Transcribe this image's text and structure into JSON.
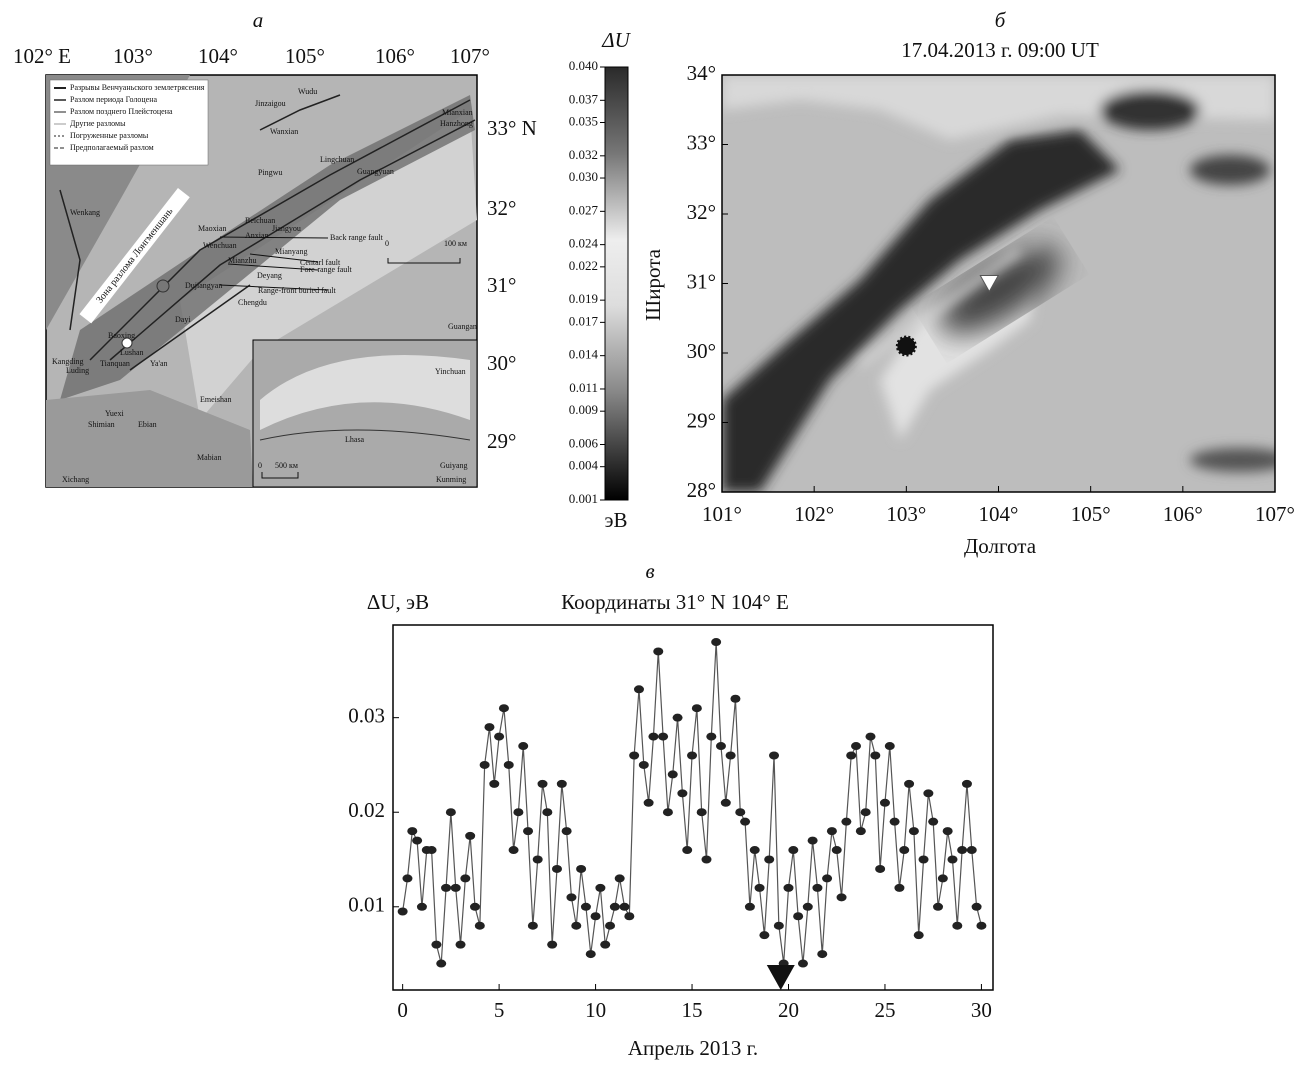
{
  "panel_a": {
    "label": "а",
    "lon_labels": [
      "102° E",
      "103°",
      "104°",
      "105°",
      "106°",
      "107°"
    ],
    "lat_labels": [
      "33° N",
      "32°",
      "31°",
      "30°",
      "29°"
    ],
    "legend": [
      "Разрывы Венчуаньского землетрясения",
      "Разлом периода Голоцена",
      "Разлом позднего Плейстоцена",
      "Другие разломы",
      "Погруженные разломы",
      "Предполагаемый разлом"
    ],
    "zone": "Зона разлома Лонгменшань",
    "places": [
      "Wudu",
      "Jinzaigou",
      "Wanxian",
      "Mianxian",
      "Hanzhong",
      "Lingchuan",
      "Pingwu",
      "Guangyuan",
      "Wenkang",
      "Beichuan",
      "Jiangyou",
      "Maoxian",
      "Anxian",
      "Mianyang",
      "Wenchuan",
      "Mianzhu",
      "Deyang",
      "Dujiangyan",
      "Chengdu",
      "Dayi",
      "Baoxing",
      "Lushan",
      "Kangding",
      "Luding",
      "Tianquan",
      "Ya'an",
      "Emeishan",
      "Yuexi",
      "Shimian",
      "Ebian",
      "Mabian",
      "Xichang",
      "Guangan",
      "Yinchuan",
      "Lhasa",
      "Guiyang",
      "Kunming"
    ],
    "faults": [
      "Back range fault",
      "Centarl fault",
      "Fore-range fault",
      "Range-front buried fault"
    ],
    "scale": [
      "0",
      "100 км",
      "0",
      "500 км"
    ]
  },
  "colorbar": {
    "title": "ΔU",
    "unit": "эВ",
    "lim": [
      0.001,
      0.04
    ],
    "ticks": [
      {
        "value": 0.04,
        "label": "0.040"
      },
      {
        "value": 0.037,
        "label": "0.037"
      },
      {
        "value": 0.035,
        "label": "0.035"
      },
      {
        "value": 0.032,
        "label": "0.032"
      },
      {
        "value": 0.03,
        "label": "0.030"
      },
      {
        "value": 0.027,
        "label": "0.027"
      },
      {
        "value": 0.024,
        "label": "0.024"
      },
      {
        "value": 0.022,
        "label": "0.022"
      },
      {
        "value": 0.019,
        "label": "0.019"
      },
      {
        "value": 0.017,
        "label": "0.017"
      },
      {
        "value": 0.014,
        "label": "0.014"
      },
      {
        "value": 0.011,
        "label": "0.011"
      },
      {
        "value": 0.009,
        "label": "0.009"
      },
      {
        "value": 0.006,
        "label": "0.006"
      },
      {
        "value": 0.004,
        "label": "0.004"
      },
      {
        "value": 0.001,
        "label": "0.001"
      }
    ]
  },
  "panel_b": {
    "label": "б",
    "subtitle": "17.04.2013 г. 09:00 UT",
    "xlabel": "Долгота",
    "ylabel": "Широта",
    "xlim": [
      101,
      107
    ],
    "ylim": [
      28,
      34
    ],
    "xticks": [
      {
        "value": 101,
        "label": "101°"
      },
      {
        "value": 102,
        "label": "102°"
      },
      {
        "value": 103,
        "label": "103°"
      },
      {
        "value": 104,
        "label": "104°"
      },
      {
        "value": 105,
        "label": "105°"
      },
      {
        "value": 106,
        "label": "106°"
      },
      {
        "value": 107,
        "label": "107°"
      }
    ],
    "yticks": [
      {
        "value": 28,
        "label": "28°"
      },
      {
        "value": 29,
        "label": "29°"
      },
      {
        "value": 30,
        "label": "30°"
      },
      {
        "value": 31,
        "label": "31°"
      },
      {
        "value": 32,
        "label": "32°"
      },
      {
        "value": 33,
        "label": "33°"
      },
      {
        "value": 34,
        "label": "34°"
      }
    ],
    "epicenter": {
      "x": 103.0,
      "y": 30.1
    },
    "station": {
      "x": 103.9,
      "y": 31.0
    }
  },
  "chart_data": {
    "type": "line",
    "label": "в",
    "title": "Координаты 31° N 104° E",
    "ylabel": "ΔU, эВ",
    "xlabel": "Апрель 2013 г.",
    "color": "#555",
    "marker_color": "#222",
    "xlim": [
      -0.5,
      30.6
    ],
    "ylim": [
      0.0012,
      0.0398
    ],
    "xticks": [
      0,
      5,
      10,
      15,
      20,
      25,
      30
    ],
    "yticks": [
      0.01,
      0.02,
      0.03
    ],
    "event_x": 19.6,
    "x": [
      0,
      0.25,
      0.5,
      0.75,
      1,
      1.25,
      1.5,
      1.75,
      2,
      2.25,
      2.5,
      2.75,
      3,
      3.25,
      3.5,
      3.75,
      4,
      4.25,
      4.5,
      4.75,
      5,
      5.25,
      5.5,
      5.75,
      6,
      6.25,
      6.5,
      6.75,
      7,
      7.25,
      7.5,
      7.75,
      8,
      8.25,
      8.5,
      8.75,
      9,
      9.25,
      9.5,
      9.75,
      10,
      10.25,
      10.5,
      10.75,
      11,
      11.25,
      11.5,
      11.75,
      12,
      12.25,
      12.5,
      12.75,
      13,
      13.25,
      13.5,
      13.75,
      14,
      14.25,
      14.5,
      14.75,
      15,
      15.25,
      15.5,
      15.75,
      16,
      16.25,
      16.5,
      16.75,
      17,
      17.25,
      17.5,
      17.75,
      18,
      18.25,
      18.5,
      18.75,
      19,
      19.25,
      19.5,
      19.75,
      20,
      20.25,
      20.5,
      20.75,
      21,
      21.25,
      21.5,
      21.75,
      22,
      22.25,
      22.5,
      22.75,
      23,
      23.25,
      23.5,
      23.75,
      24,
      24.25,
      24.5,
      24.75,
      25,
      25.25,
      25.5,
      25.75,
      26,
      26.25,
      26.5,
      26.75,
      27,
      27.25,
      27.5,
      27.75,
      28,
      28.25,
      28.5,
      28.75,
      29,
      29.25,
      29.5,
      29.75,
      30
    ],
    "values": [
      0.0095,
      0.013,
      0.018,
      0.017,
      0.01,
      0.016,
      0.016,
      0.006,
      0.004,
      0.012,
      0.02,
      0.012,
      0.006,
      0.013,
      0.0175,
      0.01,
      0.008,
      0.025,
      0.029,
      0.023,
      0.028,
      0.031,
      0.025,
      0.016,
      0.02,
      0.027,
      0.018,
      0.008,
      0.015,
      0.023,
      0.02,
      0.006,
      0.014,
      0.023,
      0.018,
      0.011,
      0.008,
      0.014,
      0.01,
      0.005,
      0.009,
      0.012,
      0.006,
      0.008,
      0.01,
      0.013,
      0.01,
      0.009,
      0.026,
      0.033,
      0.025,
      0.021,
      0.028,
      0.037,
      0.028,
      0.02,
      0.024,
      0.03,
      0.022,
      0.016,
      0.026,
      0.031,
      0.02,
      0.015,
      0.028,
      0.038,
      0.027,
      0.021,
      0.026,
      0.032,
      0.02,
      0.019,
      0.01,
      0.016,
      0.012,
      0.007,
      0.015,
      0.026,
      0.008,
      0.004,
      0.012,
      0.016,
      0.009,
      0.004,
      0.01,
      0.017,
      0.012,
      0.005,
      0.013,
      0.018,
      0.016,
      0.011,
      0.019,
      0.026,
      0.027,
      0.018,
      0.02,
      0.028,
      0.026,
      0.014,
      0.021,
      0.027,
      0.019,
      0.012,
      0.016,
      0.023,
      0.018,
      0.007,
      0.015,
      0.022,
      0.019,
      0.01,
      0.013,
      0.018,
      0.015,
      0.008,
      0.016,
      0.023,
      0.016,
      0.01,
      0.008
    ]
  }
}
